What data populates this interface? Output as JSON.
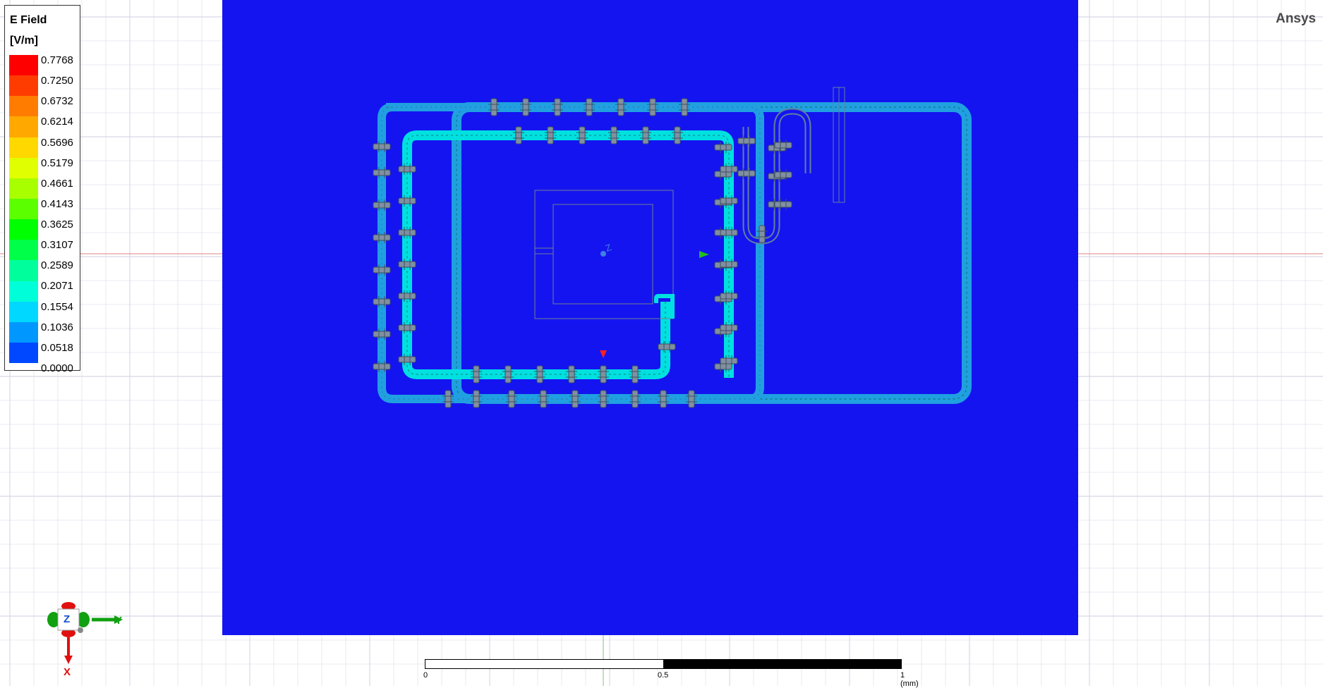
{
  "app": {
    "brand": "Ansys"
  },
  "legend": {
    "title": "E Field",
    "unit": "[V/m]",
    "values": [
      "0.7768",
      "0.7250",
      "0.6732",
      "0.6214",
      "0.5696",
      "0.5179",
      "0.4661",
      "0.4143",
      "0.3625",
      "0.3107",
      "0.2589",
      "0.2071",
      "0.1554",
      "0.1036",
      "0.0518",
      "0.0000"
    ],
    "colors": [
      "#ff0000",
      "#ff3c00",
      "#ff7c00",
      "#ffa800",
      "#ffd800",
      "#e0ff00",
      "#a8ff00",
      "#5cff00",
      "#00ff00",
      "#00ff48",
      "#00ff9c",
      "#00ffd8",
      "#00d8ff",
      "#0098ff",
      "#0048ff",
      "#0000ff"
    ]
  },
  "colors": {
    "background_field": "#1414f0",
    "trace_field": "#00e0e0",
    "trace_outer": "#20a0e0",
    "grid_line": "#d8d8e8",
    "axis_line": "#e08080"
  },
  "triad": {
    "z_label": "Z",
    "y_label": "Y",
    "x_label": "X"
  },
  "scale_bar": {
    "label_0": "0",
    "label_mid": "0.5",
    "label_end": "1 (mm)"
  },
  "model_marker": {
    "label": "Z"
  }
}
